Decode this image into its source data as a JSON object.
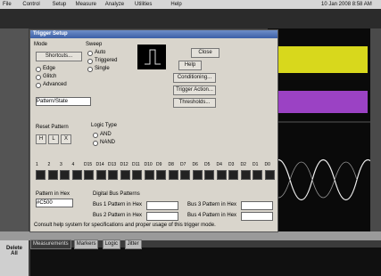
{
  "menu": [
    "File",
    "Control",
    "Setup",
    "Measure",
    "Analyze",
    "Utilities",
    "Help"
  ],
  "datetime": "10 Jan 2008 8:58 AM",
  "dialog": {
    "title": "Trigger Setup",
    "mode_label": "Mode",
    "shortcuts": "Shortcuts...",
    "modes": [
      "Edge",
      "Glitch",
      "Advanced"
    ],
    "mode_select": "Pattern/State",
    "sweep_label": "Sweep",
    "sweeps": [
      "Auto",
      "Triggered",
      "Single"
    ],
    "buttons": [
      "Close",
      "Help",
      "Conditioning...",
      "Trigger Action...",
      "Thresholds..."
    ],
    "reset_label": "Reset Pattern",
    "reset_buttons": [
      "H",
      "L",
      "X"
    ],
    "logic_label": "Logic Type",
    "logic": [
      "AND",
      "NAND"
    ],
    "channels": [
      "1",
      "2",
      "3",
      "4",
      "D15",
      "D14",
      "D13",
      "D12",
      "D11",
      "D10",
      "D9",
      "D8",
      "D7",
      "D6",
      "D5",
      "D4",
      "D3",
      "D2",
      "D1",
      "D0"
    ],
    "hex_label": "Pattern in Hex",
    "hex_value": "#C500",
    "bus_label": "Digital Bus Patterns",
    "bus": [
      "Bus 1 Pattern in Hex",
      "Bus 2 Pattern in Hex",
      "Bus 3 Pattern in Hex",
      "Bus 4 Pattern in Hex"
    ],
    "footer": "Consult help system for specifications and proper usage of this trigger mode."
  },
  "tabs": [
    "Measurements",
    "Markers",
    "Logic",
    "Jitter"
  ],
  "side": "Delete All"
}
